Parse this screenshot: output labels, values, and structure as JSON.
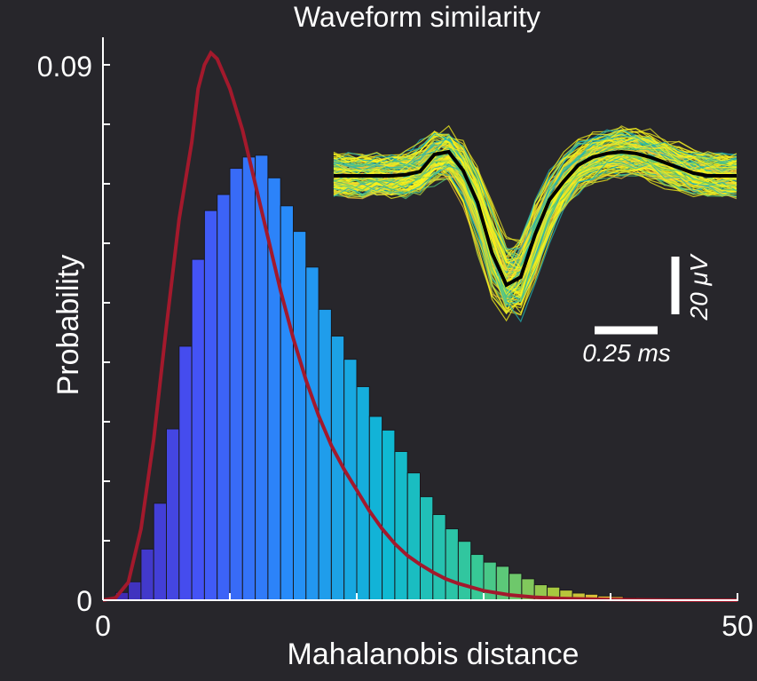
{
  "chart_data": {
    "type": "bar",
    "title": "Waveform similarity",
    "xlabel": "Mahalanobis distance",
    "ylabel": "Probability",
    "xlim": [
      0,
      50
    ],
    "ylim": [
      0,
      0.09
    ],
    "x_tick_labels": [
      "0",
      "50"
    ],
    "y_tick_labels": [
      "0",
      "0.09"
    ],
    "grid": false,
    "histogram": {
      "bin_width": 1,
      "bin_left_edges": [
        0,
        1,
        2,
        3,
        4,
        5,
        6,
        7,
        8,
        9,
        10,
        11,
        12,
        13,
        14,
        15,
        16,
        17,
        18,
        19,
        20,
        21,
        22,
        23,
        24,
        25,
        26,
        27,
        28,
        29,
        30,
        31,
        32,
        33,
        34,
        35,
        36,
        37,
        38,
        39,
        40,
        41,
        42,
        43,
        44,
        45,
        46,
        47,
        48,
        49
      ],
      "values": [
        0.0002,
        0.0013,
        0.0031,
        0.0086,
        0.0163,
        0.0288,
        0.0427,
        0.0573,
        0.0655,
        0.0682,
        0.0726,
        0.0745,
        0.0748,
        0.071,
        0.0663,
        0.062,
        0.056,
        0.0489,
        0.0444,
        0.0405,
        0.0359,
        0.0309,
        0.0286,
        0.025,
        0.0214,
        0.0174,
        0.0144,
        0.012,
        0.0099,
        0.0077,
        0.0064,
        0.0057,
        0.0045,
        0.0036,
        0.0026,
        0.0022,
        0.0017,
        0.0012,
        0.001,
        0.0007,
        0.0006,
        0.0004,
        0.0003,
        0.0002,
        0.0002,
        0.0001,
        0.0001,
        0.0001,
        0.0,
        0.0
      ]
    },
    "fit_curve": {
      "color": "#a3192c",
      "x": [
        0,
        1,
        2,
        3,
        4,
        5,
        6,
        7,
        7.5,
        8,
        8.5,
        9,
        10,
        11,
        12,
        13,
        14,
        15,
        16,
        17,
        18,
        19,
        20,
        21,
        22,
        23,
        24,
        25,
        26,
        27,
        28,
        30,
        32,
        34,
        36,
        40,
        45,
        50
      ],
      "y": [
        0.0,
        0.0004,
        0.003,
        0.012,
        0.027,
        0.046,
        0.064,
        0.077,
        0.086,
        0.09,
        0.092,
        0.091,
        0.086,
        0.079,
        0.07,
        0.061,
        0.052,
        0.044,
        0.037,
        0.031,
        0.026,
        0.022,
        0.0185,
        0.015,
        0.012,
        0.0095,
        0.0075,
        0.006,
        0.0047,
        0.0036,
        0.0028,
        0.0016,
        0.0009,
        0.0005,
        0.0003,
        0.0001,
        0.0,
        0.0
      ]
    },
    "inset": {
      "type": "line",
      "description_role": "overlaid spike waveforms with mean",
      "mean_color": "#000000",
      "trace_colors": [
        "#f9f41c",
        "#e6e12a",
        "#b7d43c",
        "#4fc47a",
        "#1fb3b5",
        "#f3c23a"
      ],
      "mean_waveform": [
        0.0,
        0.0,
        0.0,
        0.0,
        0.0,
        0.02,
        0.08,
        0.4,
        0.45,
        0.1,
        -0.5,
        -1.45,
        -2.05,
        -1.9,
        -1.1,
        -0.45,
        -0.1,
        0.2,
        0.35,
        0.42,
        0.45,
        0.42,
        0.35,
        0.25,
        0.15,
        0.05,
        0.0,
        0.0,
        0.0
      ],
      "time_scalebar_label": "0.25 ms",
      "voltage_scalebar_label": "20 μV"
    }
  }
}
